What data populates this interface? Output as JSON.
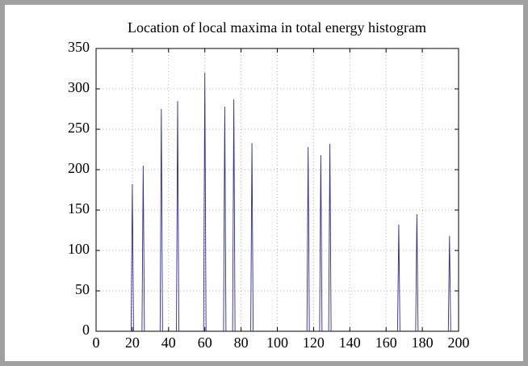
{
  "chart_data": {
    "type": "spike",
    "title": "Location of local maxima in total energy histogram",
    "x": [
      20,
      26,
      36,
      45,
      60,
      71,
      76,
      86,
      117,
      124,
      129,
      167,
      177,
      195
    ],
    "values": [
      182,
      205,
      275,
      285,
      320,
      278,
      287,
      233,
      228,
      218,
      232,
      132,
      145,
      118
    ],
    "color": "#2a2a9a",
    "xlim": [
      0,
      200
    ],
    "xticks": [
      0,
      20,
      40,
      60,
      80,
      100,
      120,
      140,
      160,
      180,
      200
    ],
    "ylim": [
      0,
      350
    ],
    "yticks": [
      0,
      50,
      100,
      150,
      200,
      250,
      300,
      350
    ],
    "grid": true
  }
}
